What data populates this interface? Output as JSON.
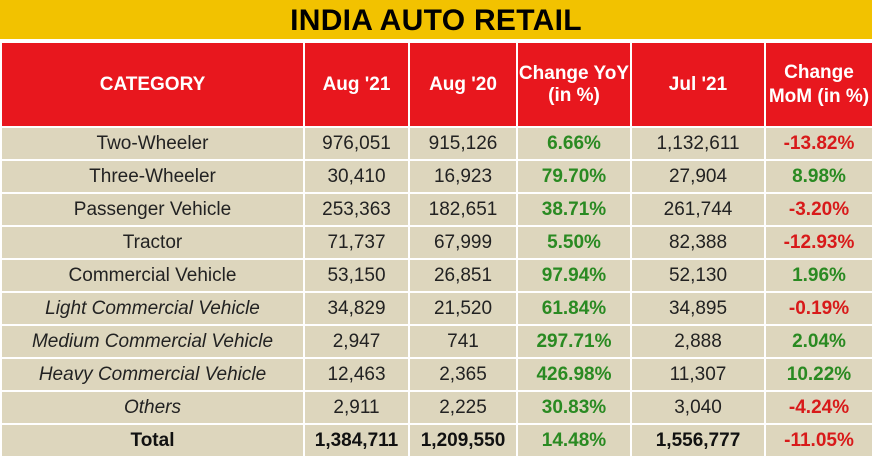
{
  "title": "INDIA AUTO RETAIL",
  "headers": {
    "category": "CATEGORY",
    "aug21": "Aug '21",
    "aug20": "Aug '20",
    "yoy": "Change YoY (in %)",
    "jul21": "Jul '21",
    "mom": "Change MoM (in %)"
  },
  "rows": [
    {
      "category": "Two-Wheeler",
      "aug21": "976,051",
      "aug20": "915,126",
      "yoy": "6.66%",
      "jul21": "1,132,611",
      "mom": "-13.82%"
    },
    {
      "category": "Three-Wheeler",
      "aug21": "30,410",
      "aug20": "16,923",
      "yoy": "79.70%",
      "jul21": "27,904",
      "mom": "8.98%"
    },
    {
      "category": "Passenger Vehicle",
      "aug21": "253,363",
      "aug20": "182,651",
      "yoy": "38.71%",
      "jul21": "261,744",
      "mom": "-3.20%"
    },
    {
      "category": "Tractor",
      "aug21": "71,737",
      "aug20": "67,999",
      "yoy": "5.50%",
      "jul21": "82,388",
      "mom": "-12.93%"
    },
    {
      "category": "Commercial Vehicle",
      "aug21": "53,150",
      "aug20": "26,851",
      "yoy": "97.94%",
      "jul21": "52,130",
      "mom": "1.96%"
    },
    {
      "category": "Light Commercial Vehicle",
      "aug21": "34,829",
      "aug20": "21,520",
      "yoy": "61.84%",
      "jul21": "34,895",
      "mom": "-0.19%"
    },
    {
      "category": "Medium Commercial Vehicle",
      "aug21": "2,947",
      "aug20": "741",
      "yoy": "297.71%",
      "jul21": "2,888",
      "mom": "2.04%"
    },
    {
      "category": "Heavy Commercial Vehicle",
      "aug21": "12,463",
      "aug20": "2,365",
      "yoy": "426.98%",
      "jul21": "11,307",
      "mom": "10.22%"
    },
    {
      "category": "Others",
      "aug21": "2,911",
      "aug20": "2,225",
      "yoy": "30.83%",
      "jul21": "3,040",
      "mom": "-4.24%"
    }
  ],
  "total": {
    "category": "Total",
    "aug21": "1,384,711",
    "aug20": "1,209,550",
    "yoy": "14.48%",
    "jul21": "1,556,777",
    "mom": "-11.05%"
  },
  "colors": {
    "title_bg": "#f2c200",
    "header_bg": "#e8171e",
    "row_bg": "#ddd6bd",
    "positive": "#2a8a22",
    "negative": "#d81a1a"
  }
}
